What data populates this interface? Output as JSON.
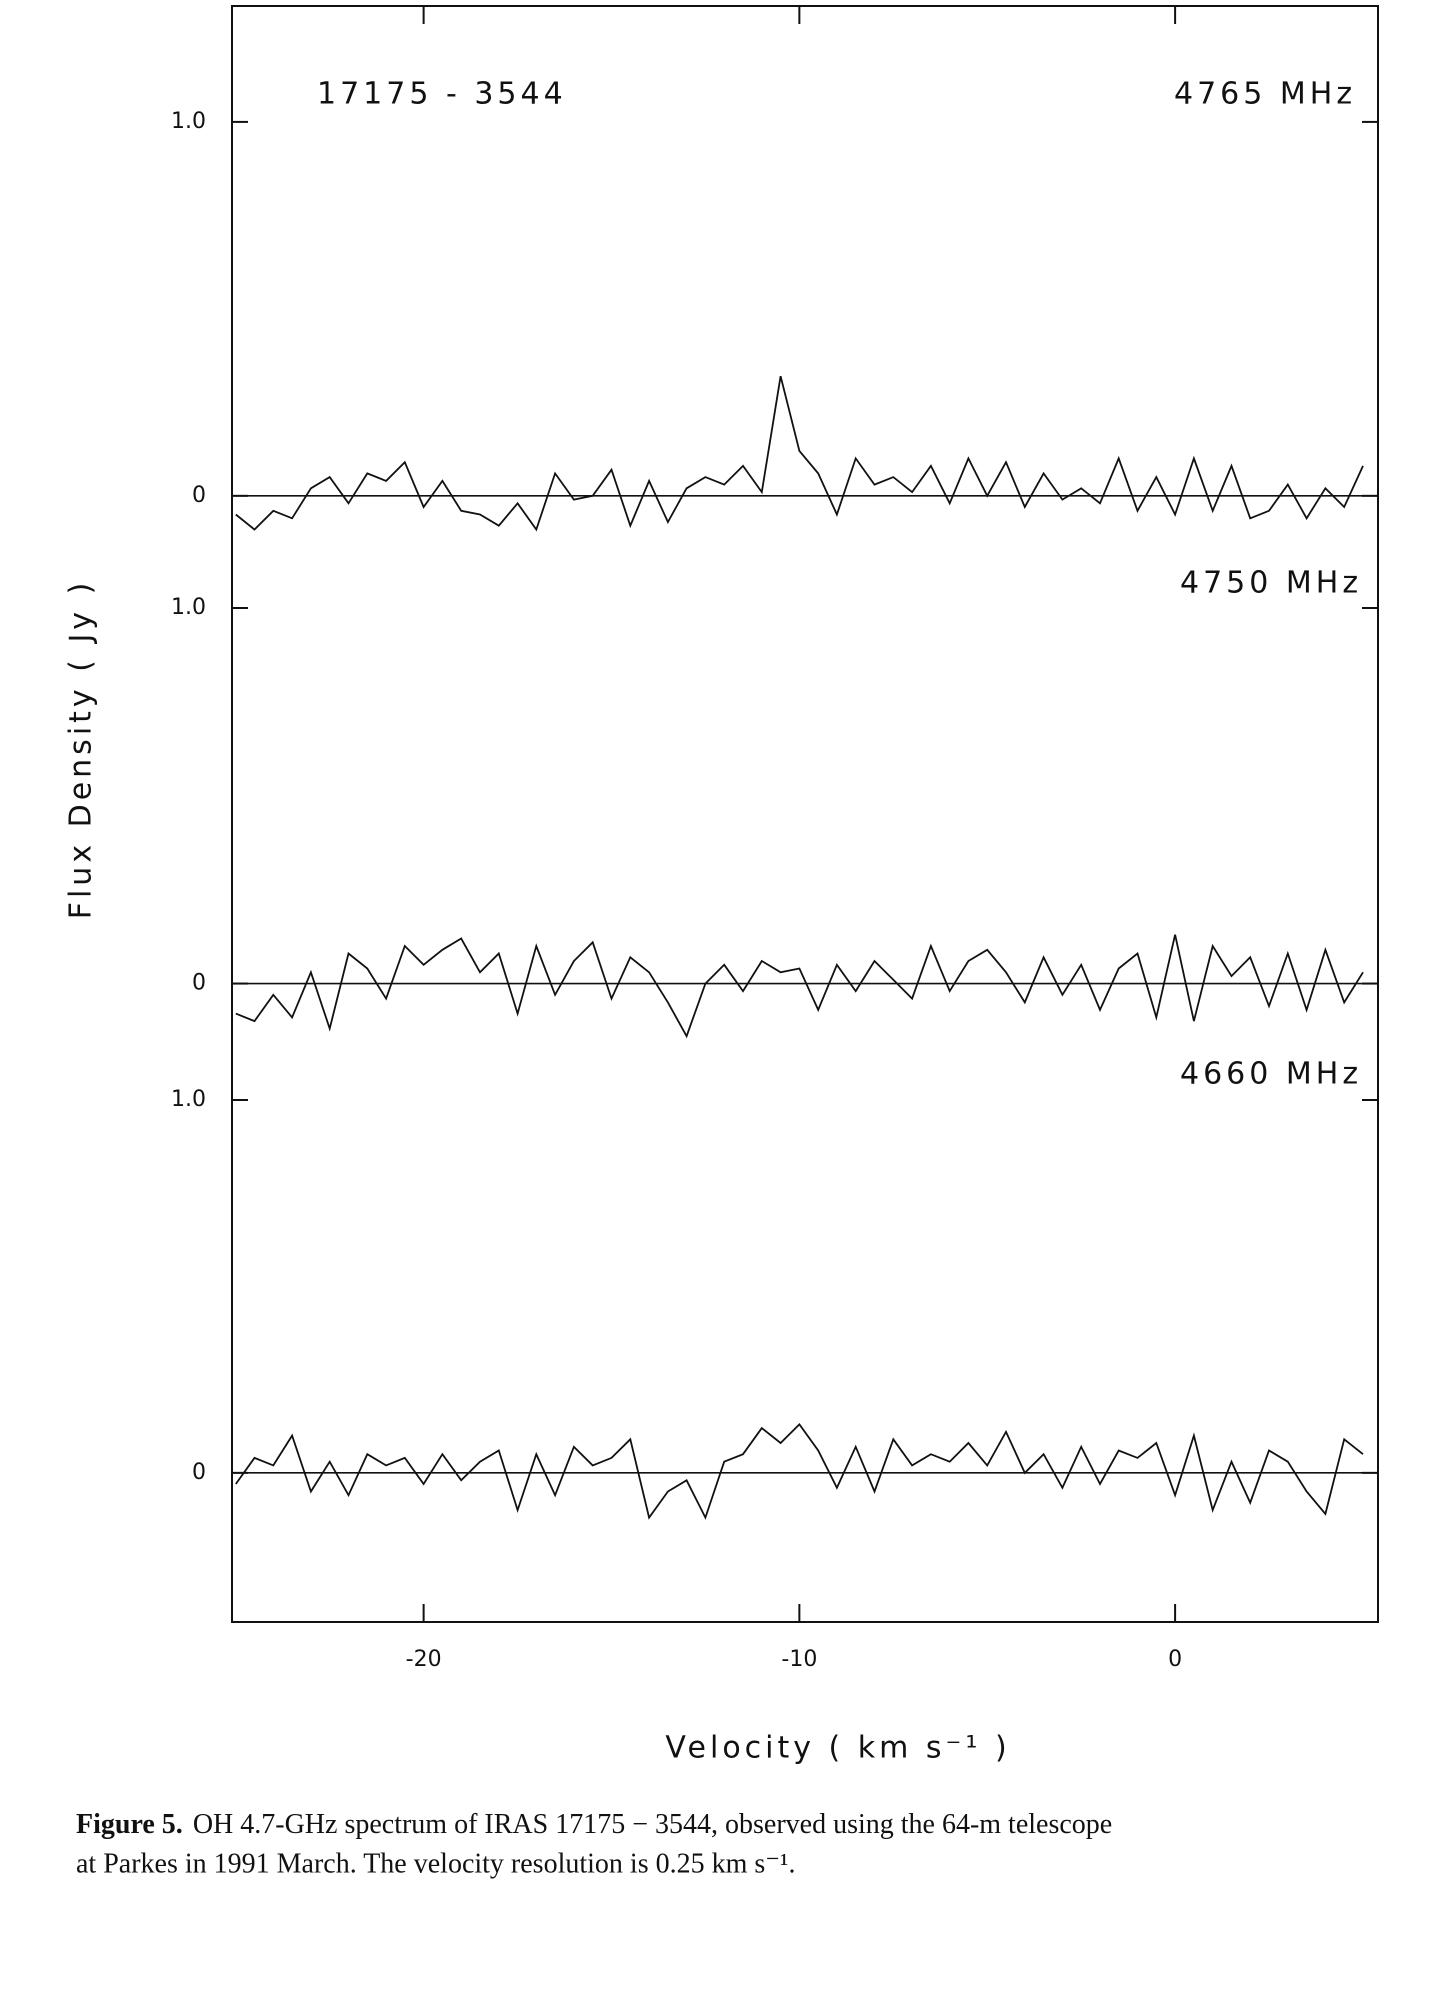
{
  "chart_data": [
    {
      "type": "line",
      "title": "4765 MHz",
      "annotation": "17175 - 3544",
      "color": "#111",
      "x": [
        -25,
        -24.5,
        -24,
        -23.5,
        -23,
        -22.5,
        -22,
        -21.5,
        -21,
        -20.5,
        -20,
        -19.5,
        -19,
        -18.5,
        -18,
        -17.5,
        -17,
        -16.5,
        -16,
        -15.5,
        -15,
        -14.5,
        -14,
        -13.5,
        -13,
        -12.5,
        -12,
        -11.5,
        -11,
        -10.5,
        -10,
        -9.5,
        -9,
        -8.5,
        -8,
        -7.5,
        -7,
        -6.5,
        -6,
        -5.5,
        -5,
        -4.5,
        -4,
        -3.5,
        -3,
        -2.5,
        -2,
        -1.5,
        -1,
        -0.5,
        0,
        0.5,
        1,
        1.5,
        2,
        2.5,
        3,
        3.5,
        4,
        4.5,
        5
      ],
      "values": [
        -0.05,
        -0.09,
        -0.04,
        -0.06,
        0.02,
        0.05,
        -0.02,
        0.06,
        0.04,
        0.09,
        -0.03,
        0.04,
        -0.04,
        -0.05,
        -0.08,
        -0.02,
        -0.09,
        0.06,
        -0.01,
        0.0,
        0.07,
        -0.08,
        0.04,
        -0.07,
        0.02,
        0.05,
        0.03,
        0.08,
        0.01,
        0.32,
        0.12,
        0.06,
        -0.05,
        0.1,
        0.03,
        0.05,
        0.01,
        0.08,
        -0.02,
        0.1,
        0.0,
        0.09,
        -0.03,
        0.06,
        -0.01,
        0.02,
        -0.02,
        0.1,
        -0.04,
        0.05,
        -0.05,
        0.1,
        -0.04,
        0.08,
        -0.06,
        -0.04,
        0.03,
        -0.06,
        0.02,
        -0.03,
        0.08
      ],
      "xlim": [
        -25.1,
        5.4
      ],
      "ylim": [
        -0.3,
        1.31
      ],
      "yticks": [
        0,
        {
          "value": 1,
          "label": "1.0"
        }
      ]
    },
    {
      "type": "line",
      "title": "4750 MHz",
      "ylabel": "Flux  Density   ( Jy )",
      "color": "#111",
      "x": [
        -25,
        -24.5,
        -24,
        -23.5,
        -23,
        -22.5,
        -22,
        -21.5,
        -21,
        -20.5,
        -20,
        -19.5,
        -19,
        -18.5,
        -18,
        -17.5,
        -17,
        -16.5,
        -16,
        -15.5,
        -15,
        -14.5,
        -14,
        -13.5,
        -13,
        -12.5,
        -12,
        -11.5,
        -11,
        -10.5,
        -10,
        -9.5,
        -9,
        -8.5,
        -8,
        -7.5,
        -7,
        -6.5,
        -6,
        -5.5,
        -5,
        -4.5,
        -4,
        -3.5,
        -3,
        -2.5,
        -2,
        -1.5,
        -1,
        -0.5,
        0,
        0.5,
        1,
        1.5,
        2,
        2.5,
        3,
        3.5,
        4,
        4.5,
        5
      ],
      "values": [
        -0.08,
        -0.1,
        -0.03,
        -0.09,
        0.03,
        -0.12,
        0.08,
        0.04,
        -0.04,
        0.1,
        0.05,
        0.09,
        0.12,
        0.03,
        0.08,
        -0.08,
        0.1,
        -0.03,
        0.06,
        0.11,
        -0.04,
        0.07,
        0.03,
        -0.05,
        -0.14,
        0.0,
        0.05,
        -0.02,
        0.06,
        0.03,
        0.04,
        -0.07,
        0.05,
        -0.02,
        0.06,
        0.01,
        -0.04,
        0.1,
        -0.02,
        0.06,
        0.09,
        0.03,
        -0.05,
        0.07,
        -0.03,
        0.05,
        -0.07,
        0.04,
        0.08,
        -0.09,
        0.13,
        -0.1,
        0.1,
        0.02,
        0.07,
        -0.06,
        0.08,
        -0.07,
        0.09,
        -0.05,
        0.03
      ],
      "xlim": [
        -25.1,
        5.4
      ],
      "ylim": [
        -0.31,
        1.0
      ],
      "yticks": [
        0,
        {
          "value": 1,
          "label": "1.0"
        }
      ]
    },
    {
      "type": "line",
      "title": "4660 MHz",
      "xlabel": "Velocity   ( km s⁻¹ )",
      "color": "#111",
      "x": [
        -25,
        -24.5,
        -24,
        -23.5,
        -23,
        -22.5,
        -22,
        -21.5,
        -21,
        -20.5,
        -20,
        -19.5,
        -19,
        -18.5,
        -18,
        -17.5,
        -17,
        -16.5,
        -16,
        -15.5,
        -15,
        -14.5,
        -14,
        -13.5,
        -13,
        -12.5,
        -12,
        -11.5,
        -11,
        -10.5,
        -10,
        -9.5,
        -9,
        -8.5,
        -8,
        -7.5,
        -7,
        -6.5,
        -6,
        -5.5,
        -5,
        -4.5,
        -4,
        -3.5,
        -3,
        -2.5,
        -2,
        -1.5,
        -1,
        -0.5,
        0,
        0.5,
        1,
        1.5,
        2,
        2.5,
        3,
        3.5,
        4,
        4.5,
        5
      ],
      "values": [
        -0.03,
        0.04,
        0.02,
        0.1,
        -0.05,
        0.03,
        -0.06,
        0.05,
        0.02,
        0.04,
        -0.03,
        0.05,
        -0.02,
        0.03,
        0.06,
        -0.1,
        0.05,
        -0.06,
        0.07,
        0.02,
        0.04,
        0.09,
        -0.12,
        -0.05,
        -0.02,
        -0.12,
        0.03,
        0.05,
        0.12,
        0.08,
        0.13,
        0.06,
        -0.04,
        0.07,
        -0.05,
        0.09,
        0.02,
        0.05,
        0.03,
        0.08,
        0.02,
        0.11,
        0.0,
        0.05,
        -0.04,
        0.07,
        -0.03,
        0.06,
        0.04,
        0.08,
        -0.06,
        0.1,
        -0.1,
        0.03,
        -0.08,
        0.06,
        0.03,
        -0.05,
        -0.11,
        0.09,
        0.05
      ],
      "xlim": [
        -25.1,
        5.4
      ],
      "ylim": [
        -0.4,
        1.0
      ],
      "yticks": [
        0,
        {
          "value": 1,
          "label": "1.0"
        }
      ],
      "xticks": [
        -20,
        -10,
        0
      ]
    }
  ],
  "caption": {
    "label": "Figure 5.",
    "line1": "OH 4.7-GHz spectrum of IRAS 17175 − 3544, observed using the 64-m telescope",
    "line2": "at Parkes in 1991 March. The velocity resolution is 0.25 km s⁻¹."
  }
}
